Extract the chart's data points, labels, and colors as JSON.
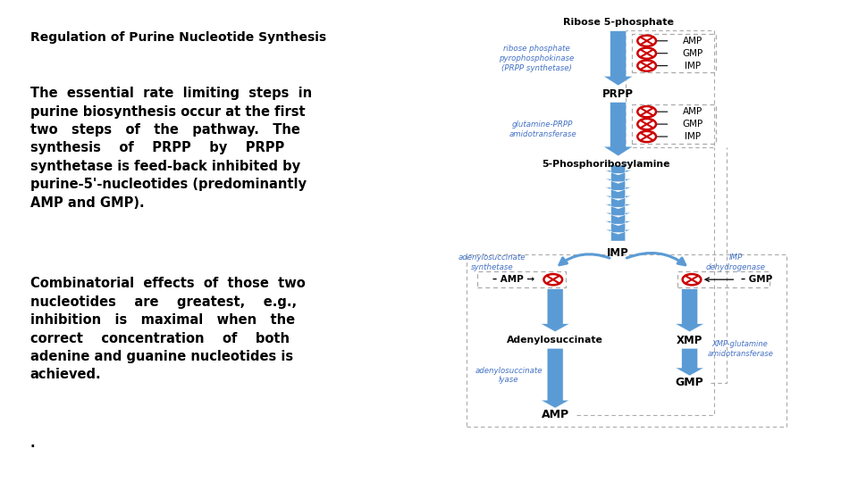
{
  "title": "Regulation of Purine Nucleotide Synthesis",
  "title_fontsize": 10,
  "paragraph1_lines": [
    "The  essential  rate  limiting  steps  in",
    "purine biosynthesis occur at the first",
    "two   steps   of   the   pathway.   The",
    "synthesis    of    PRPP    by    PRPP",
    "synthetase is feed-back inhibited by",
    "purine-5'-nucleotides (predominantly",
    "AMP and GMP)."
  ],
  "paragraph2_lines": [
    "Combinatorial  effects  of  those  two",
    "nucleotides    are    greatest,    e.g.,",
    "inhibition   is   maximal   when   the",
    "correct    concentration    of    both",
    "adenine and guanine nucleotides is",
    "achieved."
  ],
  "paragraph3": ".",
  "text_fontsize": 10.5,
  "bg_color": "#ffffff",
  "arrow_color": "#5B9BD5",
  "arrow_color_dark": "#4472C4",
  "inhibit_color": "#CC0000",
  "inhibit_fill": "#ffdddd",
  "enzyme_color": "#4472C4",
  "node_color": "#000000",
  "enzyme1": "ribose phosphate\npyrophosphokinase\n(PRPP synthetase)",
  "enzyme2": "glutamine-PRPP\namidotransferase",
  "enzyme3": "adenylosuccinate\nsynthetase",
  "enzyme4": "adenylosuccinate\nlyase",
  "enzyme5": "IMP\ndehydrogenase",
  "enzyme6": "XMP-glutamine\namidotransferase",
  "inhibitors_step1": [
    "AMP",
    "GMP",
    "IMP"
  ],
  "inhibitors_step2": [
    "AMP",
    "GMP",
    "IMP"
  ]
}
